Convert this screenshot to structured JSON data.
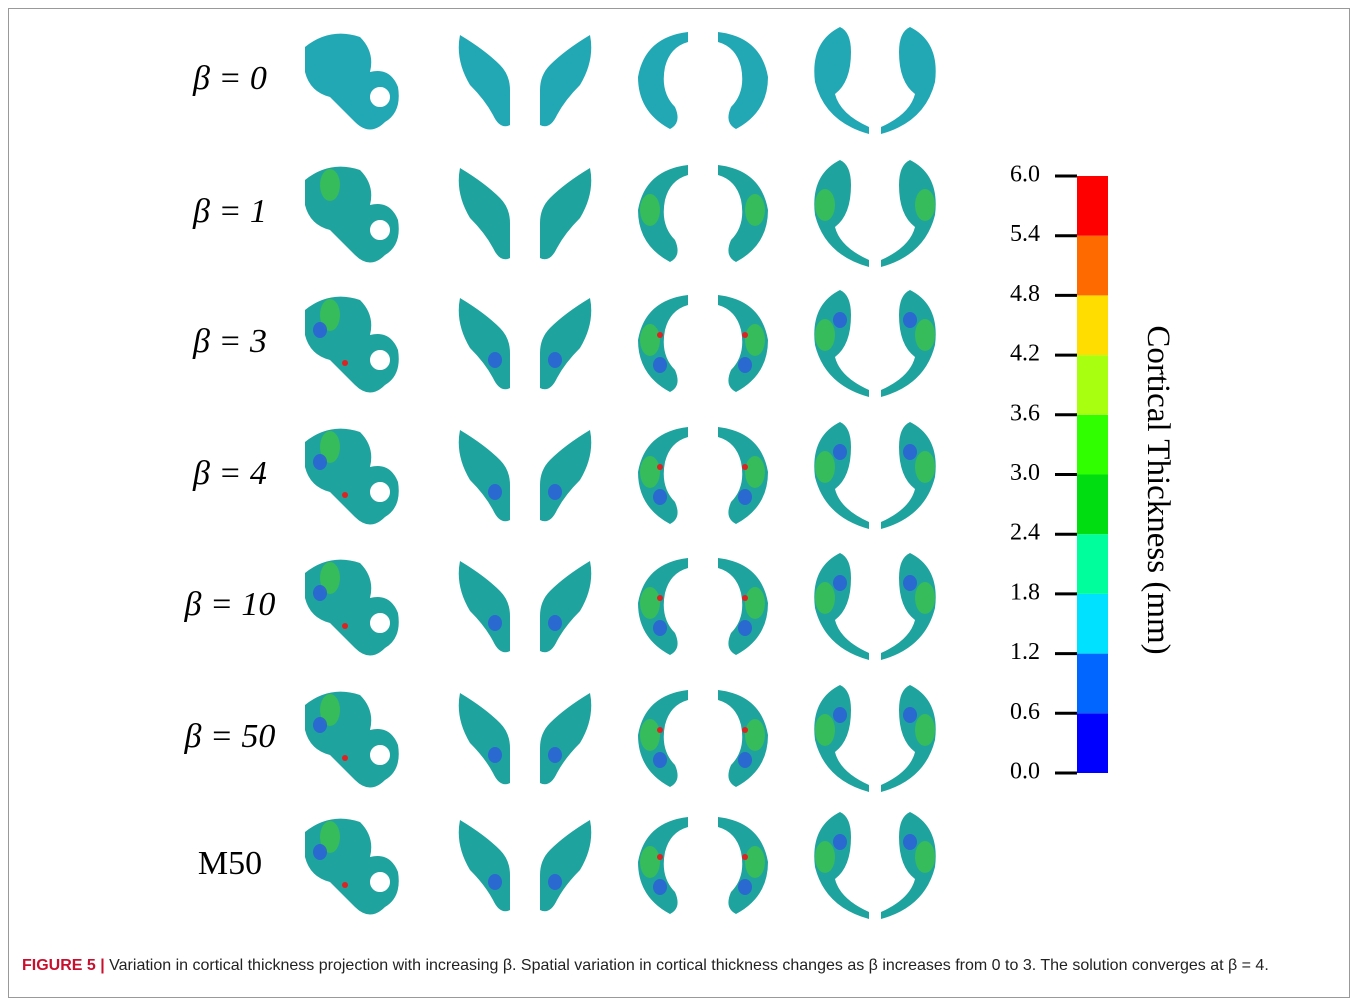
{
  "figure": {
    "row_labels": [
      "β = 0",
      "β = 1",
      "β = 3",
      "β = 4",
      "β = 10",
      "β = 50",
      "M50"
    ],
    "colorbar": {
      "label": "Cortical Thickness (mm)",
      "range": [
        0,
        6
      ],
      "ticks": [
        {
          "value": 0,
          "label": "0.0"
        },
        {
          "value": 0.6,
          "label": "0.6"
        },
        {
          "value": 1.2,
          "label": "1.2"
        },
        {
          "value": 1.8,
          "label": "1.8"
        },
        {
          "value": 2.4,
          "label": "2.4"
        },
        {
          "value": 3,
          "label": "3.0"
        },
        {
          "value": 3.6,
          "label": "3.6"
        },
        {
          "value": 4.2,
          "label": "4.2"
        },
        {
          "value": 4.8,
          "label": "4.8"
        },
        {
          "value": 5.4,
          "label": "5.4"
        },
        {
          "value": 6,
          "label": "6.0"
        }
      ],
      "colors": [
        "#0000ff",
        "#0066ff",
        "#00e0ff",
        "#00ff9c",
        "#00dd10",
        "#30ff00",
        "#a8ff10",
        "#ffdd00",
        "#ff6a00",
        "#ff0000"
      ]
    },
    "caption": {
      "label": "FIGURE 5 |",
      "text": "Variation in cortical thickness projection with increasing β. Spatial variation in cortical thickness changes as β increases from 0 to 3. The solution converges at β = 4."
    }
  }
}
